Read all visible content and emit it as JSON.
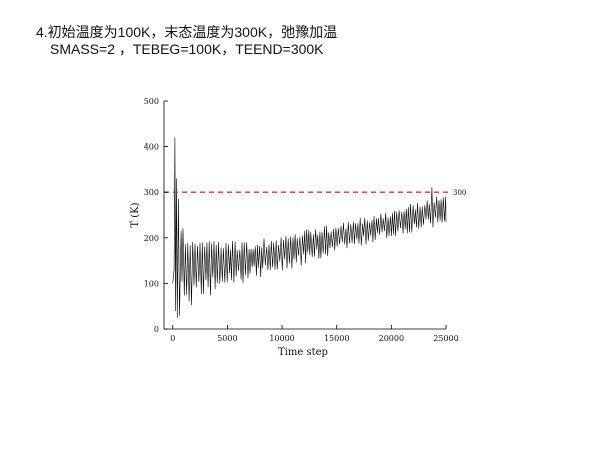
{
  "slide": {
    "heading": "4.初始温度为100K，末态温度为300K，弛豫加温",
    "params": "SMASS=2 ，TEBEG=100K，TEEND=300K"
  },
  "chart_data": {
    "type": "line",
    "title": "",
    "xlabel": "Time step",
    "ylabel": "T (K)",
    "xlim": [
      -800,
      25000
    ],
    "ylim": [
      0,
      500
    ],
    "x_ticks": [
      0,
      5000,
      10000,
      15000,
      20000,
      25000
    ],
    "y_ticks": [
      0,
      100,
      200,
      300,
      400,
      500
    ],
    "grid": false,
    "series": [
      {
        "style": "solid",
        "color": "#000000",
        "x": [
          0,
          150,
          300,
          450,
          600,
          750,
          900,
          1000,
          1500,
          2000,
          3000,
          4000,
          5000,
          6000,
          7000,
          8000,
          9000,
          10000,
          11000,
          12000,
          13000,
          14000,
          15000,
          16000,
          17000,
          18000,
          19000,
          20000,
          21000,
          22000,
          23000,
          24000,
          24500,
          25000
        ],
        "y": [
          100,
          420,
          20,
          285,
          40,
          215,
          70,
          210,
          90,
          205,
          100,
          200,
          110,
          195,
          115,
          195,
          120,
          200,
          125,
          205,
          140,
          210,
          150,
          215,
          170,
          225,
          185,
          240,
          200,
          255,
          220,
          290,
          240,
          275
        ],
        "band": {
          "x": [
            0,
            1000,
            2500,
            5000,
            7500,
            10000,
            12500,
            15000,
            17500,
            20000,
            22500,
            25000
          ],
          "upper": [
            400,
            220,
            200,
            195,
            195,
            205,
            220,
            230,
            245,
            260,
            280,
            300
          ],
          "lower": [
            20,
            40,
            60,
            90,
            110,
            125,
            145,
            165,
            185,
            200,
            215,
            230
          ]
        }
      }
    ],
    "reference_line": {
      "y": 300,
      "label": "300",
      "color": "#e0312f",
      "style": "dashed"
    }
  }
}
